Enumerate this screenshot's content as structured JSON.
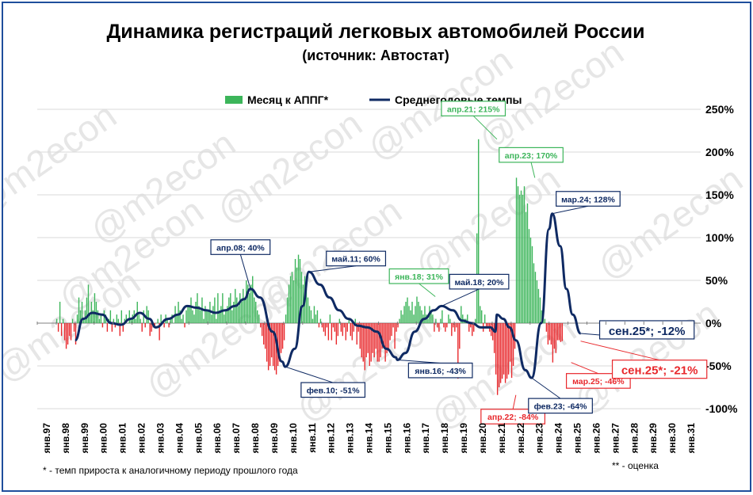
{
  "title": "Динамика регистраций легковых автомобилей России",
  "subtitle": "(источник: Автостат)",
  "watermark": "@m2econ",
  "footnotes": {
    "left": "* - темп прироста к аналогичному периоду прошлого года",
    "right": "** - оценка"
  },
  "colors": {
    "monthly_up": "#3cb55a",
    "monthly_down": "#e8282c",
    "average_line": "#0f2a63",
    "title_text": "#000000"
  },
  "chart_data": {
    "type": "bar",
    "ylim": [
      -100,
      250
    ],
    "yticks": [
      "-100%",
      "-50%",
      "0%",
      "50%",
      "100%",
      "150%",
      "200%",
      "250%"
    ],
    "ytick_values": [
      -100,
      -50,
      0,
      50,
      100,
      150,
      200,
      250
    ],
    "grid": true,
    "legend_position": "top",
    "x_categories": [
      "янв.97",
      "янв.98",
      "янв.99",
      "янв.00",
      "янв.01",
      "янв.02",
      "янв.03",
      "янв.04",
      "янв.05",
      "янв.06",
      "янв.07",
      "янв.08",
      "янв.09",
      "янв.10",
      "янв.11",
      "янв.12",
      "янв.13",
      "янв.14",
      "янв.15",
      "янв.16",
      "янв.17",
      "янв.18",
      "янв.19",
      "янв.20",
      "янв.21",
      "янв.22",
      "янв.23",
      "янв.24",
      "янв.25",
      "янв.26",
      "янв.27",
      "янв.28",
      "янв.29",
      "янв.30",
      "янв.31"
    ],
    "series": [
      {
        "name": "Месяц к АППГ*",
        "type": "bar",
        "start": "1998-01",
        "values": [
          5,
          -10,
          25,
          -15,
          5,
          -20,
          -30,
          -25,
          -15,
          -20,
          5,
          -10,
          -25,
          10,
          30,
          15,
          25,
          5,
          15,
          30,
          45,
          10,
          25,
          15,
          35,
          25,
          15,
          5,
          10,
          -5,
          15,
          10,
          -10,
          5,
          15,
          -10,
          5,
          -5,
          10,
          5,
          -15,
          15,
          -10,
          5,
          10,
          0,
          15,
          5,
          10,
          15,
          5,
          25,
          10,
          5,
          -10,
          15,
          -5,
          20,
          15,
          -15,
          -10,
          -5,
          -5,
          0,
          5,
          -20,
          10,
          0,
          -5,
          10,
          5,
          -5,
          5,
          10,
          0,
          20,
          10,
          25,
          15,
          5,
          10,
          -5,
          15,
          20,
          20,
          30,
          15,
          10,
          25,
          35,
          20,
          15,
          30,
          5,
          20,
          15,
          15,
          25,
          10,
          20,
          30,
          5,
          35,
          15,
          20,
          35,
          10,
          15,
          20,
          30,
          35,
          15,
          25,
          40,
          30,
          20,
          35,
          25,
          40,
          30,
          50,
          45,
          35,
          45,
          55,
          30,
          25,
          15,
          10,
          -5,
          -15,
          -25,
          -30,
          -45,
          -55,
          -50,
          -40,
          -50,
          -55,
          -60,
          -50,
          -45,
          -35,
          -30,
          -20,
          10,
          30,
          45,
          55,
          60,
          50,
          75,
          65,
          80,
          75,
          60,
          45,
          55,
          40,
          30,
          20,
          15,
          5,
          20,
          10,
          15,
          -5,
          5,
          -5,
          -10,
          -15,
          -5,
          -20,
          10,
          -20,
          -5,
          -10,
          -25,
          -15,
          5,
          -10,
          -15,
          -5,
          -20,
          -10,
          5,
          -15,
          -20,
          -10,
          5,
          -25,
          -10,
          -30,
          -40,
          -45,
          -55,
          -40,
          -35,
          -50,
          -45,
          -35,
          -40,
          -30,
          -45,
          -45,
          -40,
          -30,
          -25,
          -45,
          -35,
          -30,
          -20,
          -15,
          -5,
          -30,
          -10,
          -5,
          5,
          15,
          10,
          20,
          25,
          30,
          20,
          15,
          25,
          10,
          20,
          31,
          25,
          20,
          15,
          10,
          20,
          10,
          5,
          20,
          15,
          10,
          -10,
          5,
          -5,
          -10,
          5,
          15,
          -5,
          -10,
          -5,
          10,
          5,
          -15,
          -5,
          -10,
          -5,
          -65,
          -30,
          20,
          10,
          5,
          5,
          10,
          -10,
          -5,
          -15,
          -10,
          5,
          105,
          215,
          20,
          15,
          -10,
          10,
          -5,
          -5,
          -10,
          -15,
          -20,
          -35,
          -60,
          -84,
          -75,
          -70,
          -65,
          -60,
          -70,
          -65,
          -60,
          -45,
          -64,
          -50,
          -30,
          170,
          160,
          150,
          155,
          150,
          160,
          130,
          140,
          110,
          100,
          90,
          70,
          60,
          50,
          40,
          30,
          15,
          10,
          5,
          -10,
          -25,
          -20,
          -25,
          -46,
          -30,
          -35,
          -20,
          -20,
          -22,
          -21
        ]
      },
      {
        "name": "Среднегодовые темпы",
        "type": "line",
        "points": [
          [
            "1999-01",
            -20
          ],
          [
            "1999-06",
            5
          ],
          [
            "1999-12",
            12
          ],
          [
            "2000-06",
            10
          ],
          [
            "2000-12",
            0
          ],
          [
            "2001-06",
            -2
          ],
          [
            "2001-12",
            5
          ],
          [
            "2002-06",
            12
          ],
          [
            "2002-12",
            5
          ],
          [
            "2003-04",
            -5
          ],
          [
            "2003-12",
            5
          ],
          [
            "2004-06",
            10
          ],
          [
            "2004-12",
            20
          ],
          [
            "2005-06",
            18
          ],
          [
            "2005-12",
            15
          ],
          [
            "2006-06",
            12
          ],
          [
            "2006-12",
            15
          ],
          [
            "2007-06",
            20
          ],
          [
            "2007-12",
            28
          ],
          [
            "2008-04",
            40
          ],
          [
            "2008-10",
            30
          ],
          [
            "2009-06",
            -10
          ],
          [
            "2009-12",
            -45
          ],
          [
            "2010-02",
            -51
          ],
          [
            "2010-08",
            -30
          ],
          [
            "2011-01",
            20
          ],
          [
            "2011-05",
            60
          ],
          [
            "2011-12",
            45
          ],
          [
            "2012-06",
            30
          ],
          [
            "2012-12",
            15
          ],
          [
            "2013-06",
            5
          ],
          [
            "2013-12",
            -3
          ],
          [
            "2014-06",
            -5
          ],
          [
            "2014-12",
            -10
          ],
          [
            "2015-06",
            -30
          ],
          [
            "2015-12",
            -40
          ],
          [
            "2016-01",
            -43
          ],
          [
            "2016-06",
            -35
          ],
          [
            "2016-12",
            -10
          ],
          [
            "2017-06",
            5
          ],
          [
            "2017-12",
            15
          ],
          [
            "2018-05",
            20
          ],
          [
            "2018-12",
            15
          ],
          [
            "2019-06",
            3
          ],
          [
            "2019-12",
            0
          ],
          [
            "2020-06",
            -5
          ],
          [
            "2020-12",
            -5
          ],
          [
            "2021-03",
            -10
          ],
          [
            "2021-04",
            10
          ],
          [
            "2021-08",
            5
          ],
          [
            "2021-12",
            -5
          ],
          [
            "2022-04",
            -20
          ],
          [
            "2022-10",
            -55
          ],
          [
            "2023-02",
            -64
          ],
          [
            "2023-08",
            0
          ],
          [
            "2024-01",
            110
          ],
          [
            "2024-03",
            128
          ],
          [
            "2024-08",
            90
          ],
          [
            "2024-12",
            40
          ],
          [
            "2025-04",
            10
          ],
          [
            "2025-09",
            -12
          ]
        ]
      }
    ],
    "annotations": [
      {
        "label": "апр.08; 40%",
        "series": "line",
        "date": "2008-04",
        "value": 40,
        "color": "#0f2a63"
      },
      {
        "label": "фев.10; -51%",
        "series": "line",
        "date": "2010-02",
        "value": -51,
        "color": "#0f2a63"
      },
      {
        "label": "май.11; 60%",
        "series": "line",
        "date": "2011-05",
        "value": 60,
        "color": "#0f2a63"
      },
      {
        "label": "янв.16; -43%",
        "series": "line",
        "date": "2016-01",
        "value": -43,
        "color": "#0f2a63"
      },
      {
        "label": "янв.18; 31%",
        "series": "bar",
        "date": "2018-01",
        "value": 31,
        "color": "#3cb55a"
      },
      {
        "label": "май.18; 20%",
        "series": "line",
        "date": "2018-05",
        "value": 20,
        "color": "#0f2a63"
      },
      {
        "label": "апр.21; 215%",
        "series": "bar",
        "date": "2021-04",
        "value": 215,
        "color": "#3cb55a"
      },
      {
        "label": "апр.22; -84%",
        "series": "bar",
        "date": "2022-04",
        "value": -84,
        "color": "#e8282c"
      },
      {
        "label": "фев.23; -64%",
        "series": "line",
        "date": "2023-02",
        "value": -64,
        "color": "#0f2a63"
      },
      {
        "label": "апр.23; 170%",
        "series": "bar",
        "date": "2023-04",
        "value": 170,
        "color": "#3cb55a"
      },
      {
        "label": "мар.24; 128%",
        "series": "line",
        "date": "2024-03",
        "value": 128,
        "color": "#0f2a63"
      },
      {
        "label": "мар.25; -46%",
        "series": "bar",
        "date": "2025-03",
        "value": -46,
        "color": "#e8282c"
      },
      {
        "label": "сен.25*; -12%",
        "series": "line",
        "date": "2025-09",
        "value": -12,
        "color": "#0f2a63",
        "big": true
      },
      {
        "label": "сен.25*; -21%",
        "series": "bar",
        "date": "2025-09",
        "value": -21,
        "color": "#e8282c",
        "big": true
      }
    ]
  }
}
